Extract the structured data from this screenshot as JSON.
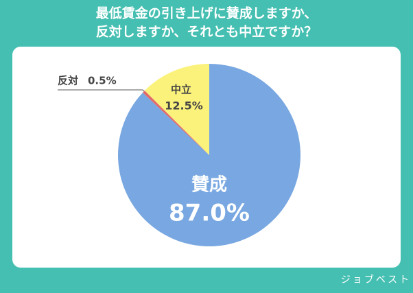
{
  "chart_data": {
    "type": "pie",
    "title": [
      "最低賃金の引き上げに賛成しますか、",
      "反対しますか、それとも中立ですか？"
    ],
    "categories": [
      "賛成",
      "反対",
      "中立"
    ],
    "values": [
      87.0,
      0.5,
      12.5
    ],
    "value_labels": [
      "87.0%",
      "0.5%",
      "12.5%"
    ],
    "colors": [
      "#78a7e1",
      "#e36a6a",
      "#fbf27b"
    ],
    "watermark": "ジョブベスト"
  }
}
